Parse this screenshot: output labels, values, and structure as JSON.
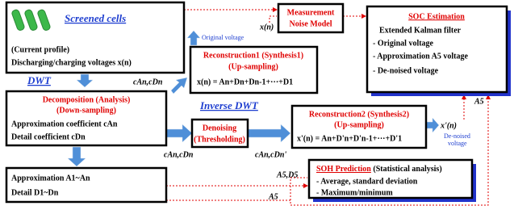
{
  "nodes": [
    {
      "title": "Screened cells",
      "lines": [
        "(Current profile)",
        "Discharging/charging voltages x(n)"
      ]
    },
    {
      "title": "Decomposition (Analysis)",
      "subtitle": "(Down-sampling)",
      "lines": [
        "Approximation coefficient cAn",
        "Detail coefficient cDn"
      ]
    },
    {
      "lines": [
        "Approximation A1~An",
        "Detail D1~Dn"
      ]
    },
    {
      "title": "Measurement",
      "subtitle": "Noise Model"
    },
    {
      "title": "SOC Estimation",
      "lines": [
        "Extended Kalman filter",
        "- Original voltage",
        "- Approximation A5 voltage",
        "- De-noised voltage"
      ]
    },
    {
      "title": "Reconstruction1 (Synthesis1)",
      "subtitle": "(Up-sampling)",
      "lines": [
        "x(n) = An+Dn+Dn-1+···+D1"
      ]
    },
    {
      "title": "Denoising",
      "subtitle": "(Thresholding)"
    },
    {
      "title": "Reconstruction2 (Synthesis2)",
      "subtitle": "(Up-sampling)",
      "lines": [
        "x'(n) = An+D'n+D'n-1+···+D'1"
      ]
    },
    {
      "title": "SOH Prediction",
      "title_note": "(Statistical analysis)",
      "lines": [
        "- Average, standard deviation",
        "- Maximum/minimum"
      ]
    }
  ],
  "labels": [
    "DWT",
    "Inverse DWT",
    "cAn,cDn",
    "cAn,cDn",
    "cAn,cDn'",
    "x(n)",
    "Original voltage",
    "x'(n)",
    "De-noised",
    "voltage",
    "A5",
    "A5,D5",
    "A5"
  ]
}
